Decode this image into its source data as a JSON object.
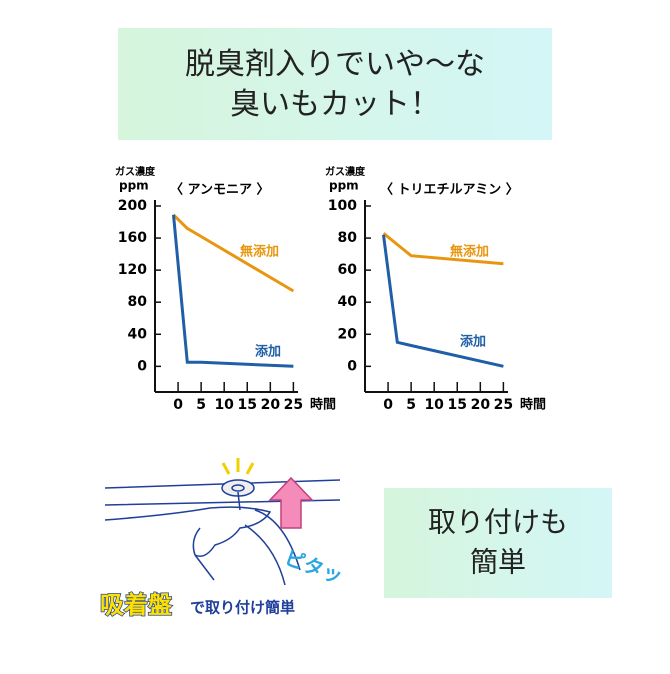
{
  "banner": {
    "lines": [
      "脱臭剤入りでいや～な",
      "臭いもカット！"
    ]
  },
  "chart_data": [
    {
      "type": "line",
      "title": "〈 アンモニア 〉",
      "y_label": "ガス濃度",
      "y_unit": "ppm",
      "x_label": "時間",
      "x": [
        -1,
        2,
        5,
        25
      ],
      "series": [
        {
          "name": "無添加",
          "color": "#e8960f",
          "values": [
            189,
            172,
            162,
            94
          ]
        },
        {
          "name": "添加",
          "color": "#1f5fa8",
          "values": [
            189,
            5,
            5,
            0
          ]
        }
      ],
      "xlim": [
        -5,
        26
      ],
      "xticks": [
        0,
        5,
        10,
        15,
        20,
        25
      ],
      "ylim": [
        -32,
        200
      ],
      "yticks": [
        0,
        40,
        80,
        120,
        160,
        200
      ],
      "grid": false
    },
    {
      "type": "line",
      "title": "〈 トリエチルアミン 〉",
      "y_label": "ガス濃度",
      "y_unit": "ppm",
      "x_label": "時間",
      "x": [
        -1,
        2,
        5,
        25
      ],
      "series": [
        {
          "name": "無添加",
          "color": "#e8960f",
          "values": [
            83,
            76,
            69,
            64
          ]
        },
        {
          "name": "添加",
          "color": "#1f5fa8",
          "values": [
            82,
            15,
            13,
            0
          ]
        }
      ],
      "xlim": [
        -5,
        26
      ],
      "xticks": [
        0,
        5,
        10,
        15,
        20,
        25
      ],
      "ylim": [
        -16,
        100
      ],
      "yticks": [
        0,
        20,
        40,
        60,
        80,
        100
      ],
      "grid": false
    }
  ],
  "illustration": {
    "caption_main": "吸着盤",
    "caption_rest": "で取り付け簡単",
    "sound": "ピタッ"
  },
  "feature_box": {
    "lines": [
      "取り付けも",
      "簡単"
    ]
  }
}
